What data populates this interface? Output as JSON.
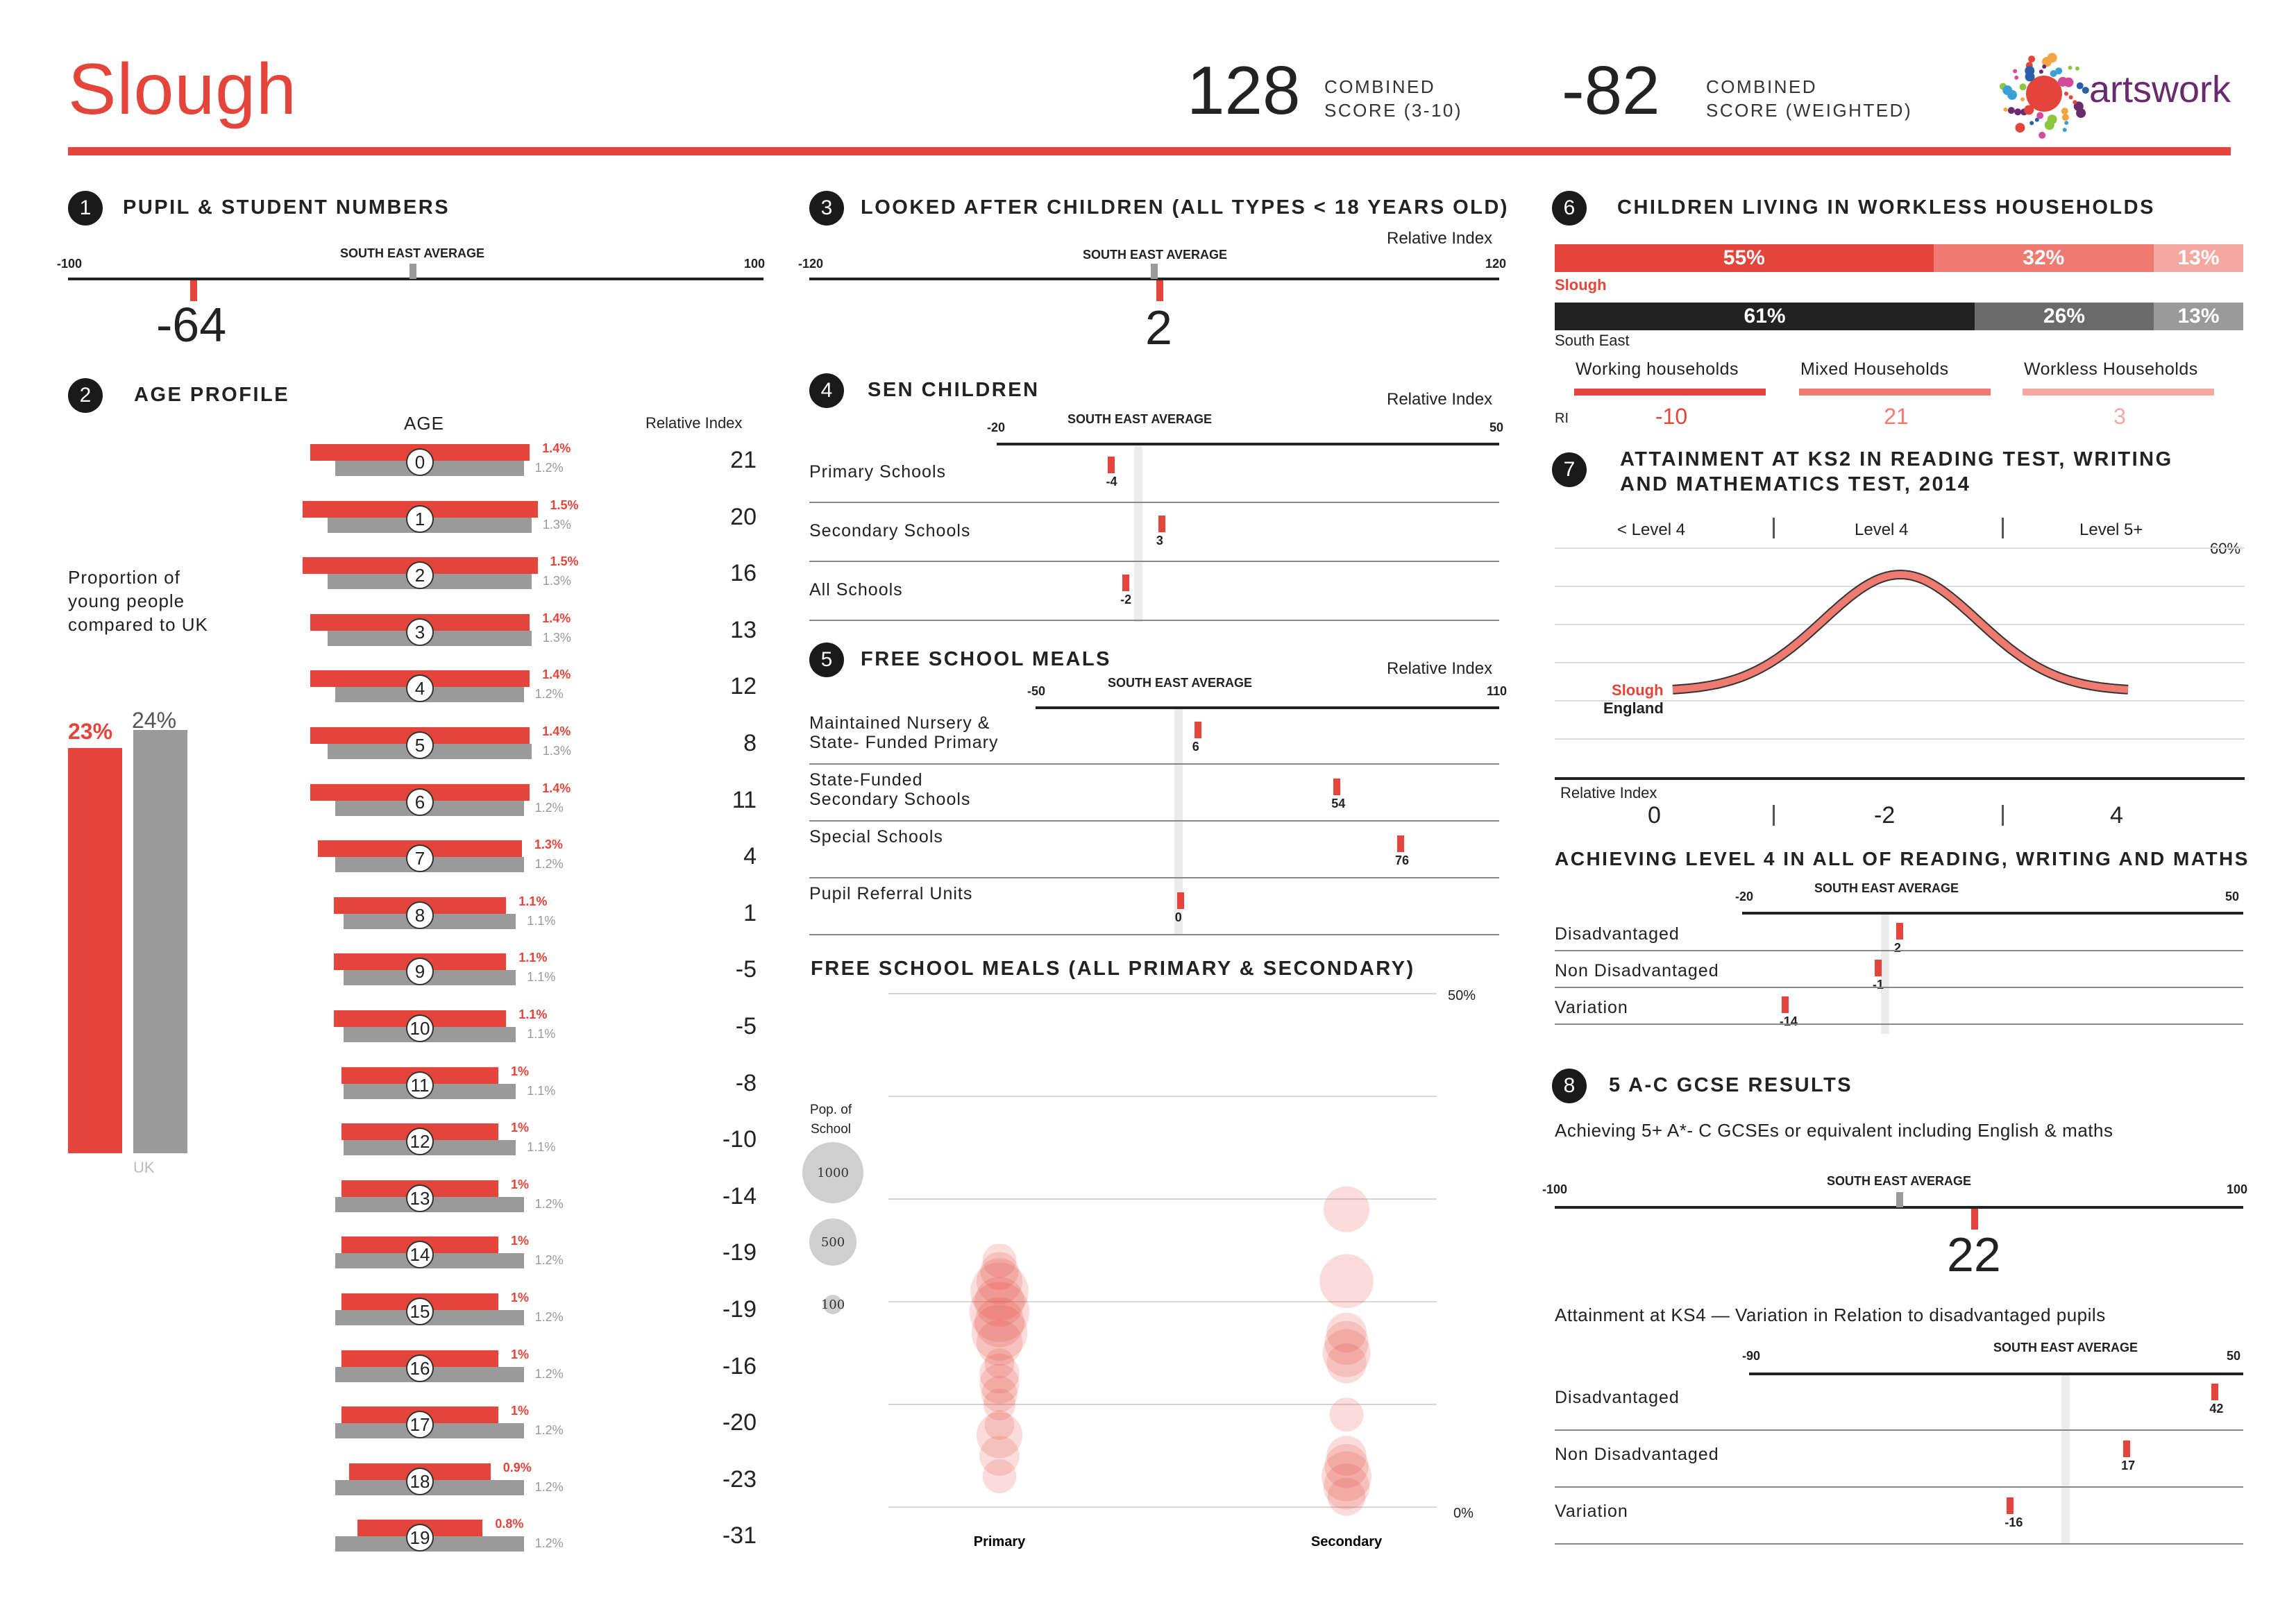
{
  "header": {
    "title": "Slough",
    "combined_score": "128",
    "combined_score_label_1": "COMBINED",
    "combined_score_label_2": "SCORE (3-10)",
    "weighted_score": "-82",
    "weighted_score_label_1": "COMBINED",
    "weighted_score_label_2": "SCORE (WEIGHTED)",
    "logo_text": "artswork"
  },
  "sec1": {
    "num": "1",
    "title": "PUPIL & STUDENT NUMBERS",
    "min": "-100",
    "max": "100",
    "avg_label": "SOUTH EAST AVERAGE",
    "value": "-64",
    "value_num": -64
  },
  "sec2": {
    "num": "2",
    "title": "AGE PROFILE",
    "age_label": "AGE",
    "ri_label": "Relative Index",
    "proportion_text_1": "Proportion of",
    "proportion_text_2": "young people",
    "proportion_text_3": "compared to UK",
    "slough_pct": "23%",
    "uk_pct": "24%",
    "uk_label": "UK",
    "slough_pct_num": 23,
    "uk_pct_num": 24,
    "ages": [
      {
        "age": "0",
        "slough": "1.4%",
        "uk": "1.2%",
        "s": 1.4,
        "u": 1.2,
        "ri": "21"
      },
      {
        "age": "1",
        "slough": "1.5%",
        "uk": "1.3%",
        "s": 1.5,
        "u": 1.3,
        "ri": "20"
      },
      {
        "age": "2",
        "slough": "1.5%",
        "uk": "1.3%",
        "s": 1.5,
        "u": 1.3,
        "ri": "16"
      },
      {
        "age": "3",
        "slough": "1.4%",
        "uk": "1.3%",
        "s": 1.4,
        "u": 1.3,
        "ri": "13"
      },
      {
        "age": "4",
        "slough": "1.4%",
        "uk": "1.2%",
        "s": 1.4,
        "u": 1.2,
        "ri": "12"
      },
      {
        "age": "5",
        "slough": "1.4%",
        "uk": "1.3%",
        "s": 1.4,
        "u": 1.3,
        "ri": "8"
      },
      {
        "age": "6",
        "slough": "1.4%",
        "uk": "1.2%",
        "s": 1.4,
        "u": 1.2,
        "ri": "11"
      },
      {
        "age": "7",
        "slough": "1.3%",
        "uk": "1.2%",
        "s": 1.3,
        "u": 1.2,
        "ri": "4"
      },
      {
        "age": "8",
        "slough": "1.1%",
        "uk": "1.1%",
        "s": 1.1,
        "u": 1.1,
        "ri": "1"
      },
      {
        "age": "9",
        "slough": "1.1%",
        "uk": "1.1%",
        "s": 1.1,
        "u": 1.1,
        "ri": "-5"
      },
      {
        "age": "10",
        "slough": "1.1%",
        "uk": "1.1%",
        "s": 1.1,
        "u": 1.1,
        "ri": "-5"
      },
      {
        "age": "11",
        "slough": "1%",
        "uk": "1.1%",
        "s": 1.0,
        "u": 1.1,
        "ri": "-8"
      },
      {
        "age": "12",
        "slough": "1%",
        "uk": "1.1%",
        "s": 1.0,
        "u": 1.1,
        "ri": "-10"
      },
      {
        "age": "13",
        "slough": "1%",
        "uk": "1.2%",
        "s": 1.0,
        "u": 1.2,
        "ri": "-14"
      },
      {
        "age": "14",
        "slough": "1%",
        "uk": "1.2%",
        "s": 1.0,
        "u": 1.2,
        "ri": "-19"
      },
      {
        "age": "15",
        "slough": "1%",
        "uk": "1.2%",
        "s": 1.0,
        "u": 1.2,
        "ri": "-19"
      },
      {
        "age": "16",
        "slough": "1%",
        "uk": "1.2%",
        "s": 1.0,
        "u": 1.2,
        "ri": "-16"
      },
      {
        "age": "17",
        "slough": "1%",
        "uk": "1.2%",
        "s": 1.0,
        "u": 1.2,
        "ri": "-20"
      },
      {
        "age": "18",
        "slough": "0.9%",
        "uk": "1.2%",
        "s": 0.9,
        "u": 1.2,
        "ri": "-23"
      },
      {
        "age": "19",
        "slough": "0.8%",
        "uk": "1.2%",
        "s": 0.8,
        "u": 1.2,
        "ri": "-31"
      }
    ]
  },
  "sec3": {
    "num": "3",
    "title": "LOOKED AFTER CHILDREN (ALL TYPES < 18 YEARS OLD)",
    "ri_label": "Relative Index",
    "min": "-120",
    "max": "120",
    "avg_label": "SOUTH EAST AVERAGE",
    "value": "2",
    "value_num": 2
  },
  "sec4": {
    "num": "4",
    "title": "SEN CHILDREN",
    "ri_label": "Relative Index",
    "min": "-20",
    "max": "50",
    "avg_label": "SOUTH EAST AVERAGE",
    "rows": [
      {
        "label": "Primary Schools",
        "value": "-4",
        "v": -4
      },
      {
        "label": "Secondary Schools",
        "value": "3",
        "v": 3
      },
      {
        "label": "All Schools",
        "value": "-2",
        "v": -2
      }
    ]
  },
  "sec5": {
    "num": "5",
    "title": "FREE SCHOOL MEALS",
    "ri_label": "Relative Index",
    "min": "-50",
    "max": "110",
    "avg_label": "SOUTH EAST AVERAGE",
    "rows": [
      {
        "label1": "Maintained Nursery &",
        "label2": "State- Funded Primary",
        "value": "6",
        "v": 6
      },
      {
        "label1": "State-Funded",
        "label2": "Secondary Schools",
        "value": "54",
        "v": 54
      },
      {
        "label1": "Special Schools",
        "label2": "",
        "value": "76",
        "v": 76
      },
      {
        "label1": "Pupil Referral Units",
        "label2": "",
        "value": "0",
        "v": 0
      }
    ]
  },
  "fsm_chart": {
    "title": "FREE SCHOOL MEALS (ALL PRIMARY & SECONDARY)",
    "top_label": "50%",
    "bottom_label": "0%",
    "pop_label_1": "Pop. of",
    "pop_label_2": "School",
    "legend": [
      "1000",
      "500",
      "100"
    ],
    "primary_label": "Primary",
    "secondary_label": "Secondary"
  },
  "chart_data": {
    "type": "scatter",
    "categories": [
      "Primary",
      "Secondary"
    ],
    "ylim": [
      0,
      50
    ],
    "series": [
      {
        "values": [
          [
            0,
            24
          ],
          [
            0,
            23
          ],
          [
            0,
            22
          ],
          [
            0,
            21
          ],
          [
            0,
            20
          ],
          [
            0,
            19
          ],
          [
            0,
            18
          ],
          [
            0,
            17
          ],
          [
            0,
            16
          ],
          [
            0,
            14
          ],
          [
            0,
            13
          ],
          [
            0,
            12
          ],
          [
            0,
            11
          ],
          [
            0,
            10
          ],
          [
            0,
            8
          ],
          [
            0,
            7
          ],
          [
            0,
            5
          ],
          [
            0,
            3
          ]
        ]
      },
      {
        "values": [
          [
            1,
            29
          ],
          [
            1,
            22
          ],
          [
            1,
            17
          ],
          [
            1,
            16
          ],
          [
            1,
            15
          ],
          [
            1,
            14
          ],
          [
            1,
            9
          ],
          [
            1,
            5
          ],
          [
            1,
            4
          ],
          [
            1,
            3
          ],
          [
            1,
            2
          ],
          [
            1,
            1
          ]
        ]
      }
    ]
  },
  "sec6": {
    "num": "6",
    "title": "CHILDREN LIVING IN WORKLESS HOUSEHOLDS",
    "slough_label": "Slough",
    "se_label": "South East",
    "slough": [
      {
        "pct": "55%",
        "v": 55
      },
      {
        "pct": "32%",
        "v": 32
      },
      {
        "pct": "13%",
        "v": 13
      }
    ],
    "se": [
      {
        "pct": "61%",
        "v": 61
      },
      {
        "pct": "26%",
        "v": 26
      },
      {
        "pct": "13%",
        "v": 13
      }
    ],
    "ri_label": "RI",
    "cats": [
      {
        "label": "Working households",
        "ri": "-10"
      },
      {
        "label": "Mixed Households",
        "ri": "21"
      },
      {
        "label": "Workless Households",
        "ri": "3"
      }
    ],
    "colors": [
      "#e4453a",
      "#ee7a70",
      "#f5a8a2",
      "#222222",
      "#6b6b6b",
      "#9a9a9a"
    ]
  },
  "sec7": {
    "num": "7",
    "title_1": "ATTAINMENT AT KS2 IN READING TEST, WRITING",
    "title_2": "AND MATHEMATICS TEST, 2014",
    "levels": [
      "< Level 4",
      "Level 4",
      "Level 5+"
    ],
    "pct_label": "60%",
    "slough_label": "Slough",
    "england_label": "England",
    "ri_label": "Relative Index",
    "ri_values": [
      "0",
      "-2",
      "4"
    ],
    "sub_title": "ACHIEVING LEVEL 4 IN ALL OF READING, WRITING AND MATHS",
    "min": "-20",
    "max": "50",
    "avg_label": "SOUTH EAST AVERAGE",
    "rows": [
      {
        "label": "Disadvantaged",
        "value": "2",
        "v": 2
      },
      {
        "label": "Non Disadvantaged",
        "value": "-1",
        "v": -1
      },
      {
        "label": "Variation",
        "value": "-14",
        "v": -14
      }
    ]
  },
  "sec8": {
    "num": "8",
    "title": "5 A-C GCSE RESULTS",
    "subtitle": "Achieving 5+ A*- C GCSEs or equivalent including English & maths",
    "min": "-100",
    "max": "100",
    "avg_label": "SOUTH EAST AVERAGE",
    "value": "22",
    "value_num": 22,
    "sub2": "Attainment at KS4 — Variation in Relation to disadvantaged pupils",
    "min2": "-90",
    "max2": "50",
    "avg_label2": "SOUTH EAST AVERAGE",
    "rows": [
      {
        "label": "Disadvantaged",
        "value": "42",
        "v": 42
      },
      {
        "label": "Non Disadvantaged",
        "value": "17",
        "v": 17
      },
      {
        "label": "Variation",
        "value": "-16",
        "v": -16
      }
    ]
  }
}
